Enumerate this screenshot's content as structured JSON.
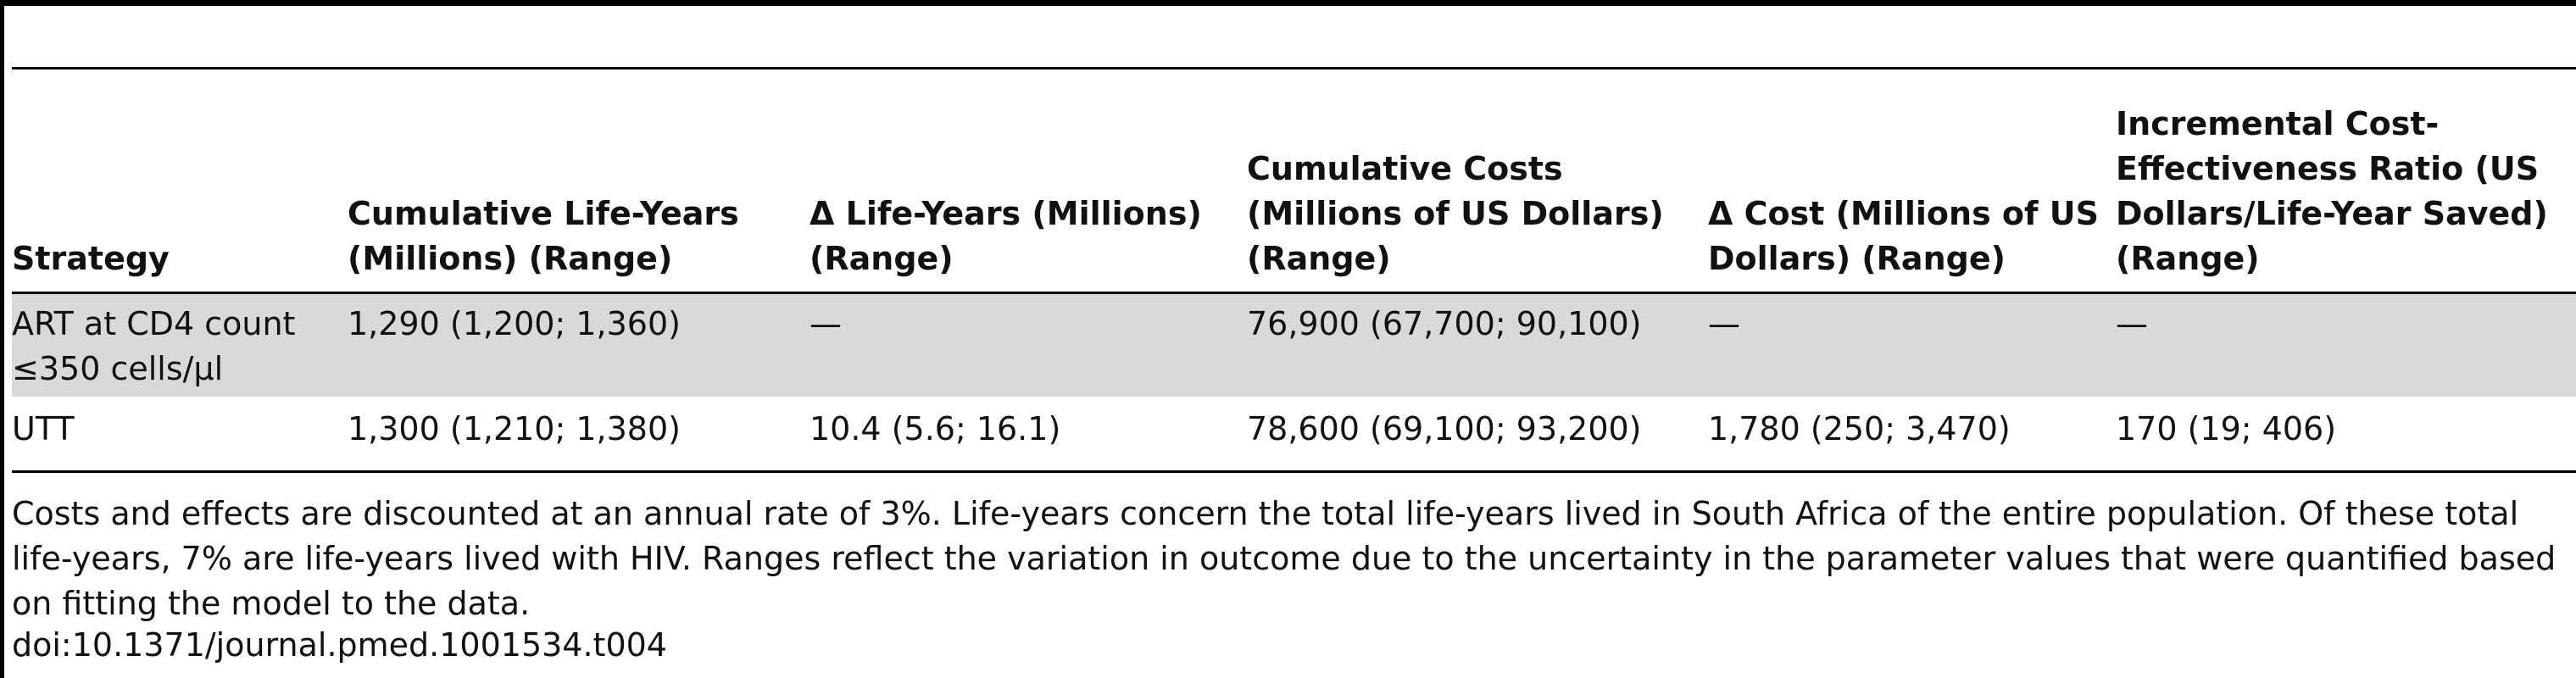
{
  "table": {
    "headers": [
      "Strategy",
      "Cumulative Life-Years (Millions) (Range)",
      "Δ Life-Years (Millions) (Range)",
      "Cumulative Costs (Millions of US Dollars) (Range)",
      "Δ Cost (Millions of US Dollars) (Range)",
      "Incremental Cost-Effectiveness Ratio (US Dollars/Life-Year Saved) (Range)"
    ],
    "rows": [
      [
        "ART at CD4 count ≤350 cells/µl",
        "1,290 (1,200; 1,360)",
        "—",
        "76,900 (67,700; 90,100)",
        "—",
        "—"
      ],
      [
        "UTT",
        "1,300 (1,210; 1,380)",
        "10.4 (5.6; 16.1)",
        "78,600 (69,100; 93,200)",
        "1,780 (250; 3,470)",
        "170 (19; 406)"
      ]
    ]
  },
  "footnote": "Costs and effects are discounted at an annual rate of 3%. Life-years concern the total life-years lived in South Africa of the entire population. Of these total life-years, 7% are life-years lived with HIV. Ranges reflect the variation in outcome due to the uncertainty in the parameter values that were quantified based on fitting the model to the data.",
  "doi": "doi:10.1371/journal.pmed.1001534.t004"
}
